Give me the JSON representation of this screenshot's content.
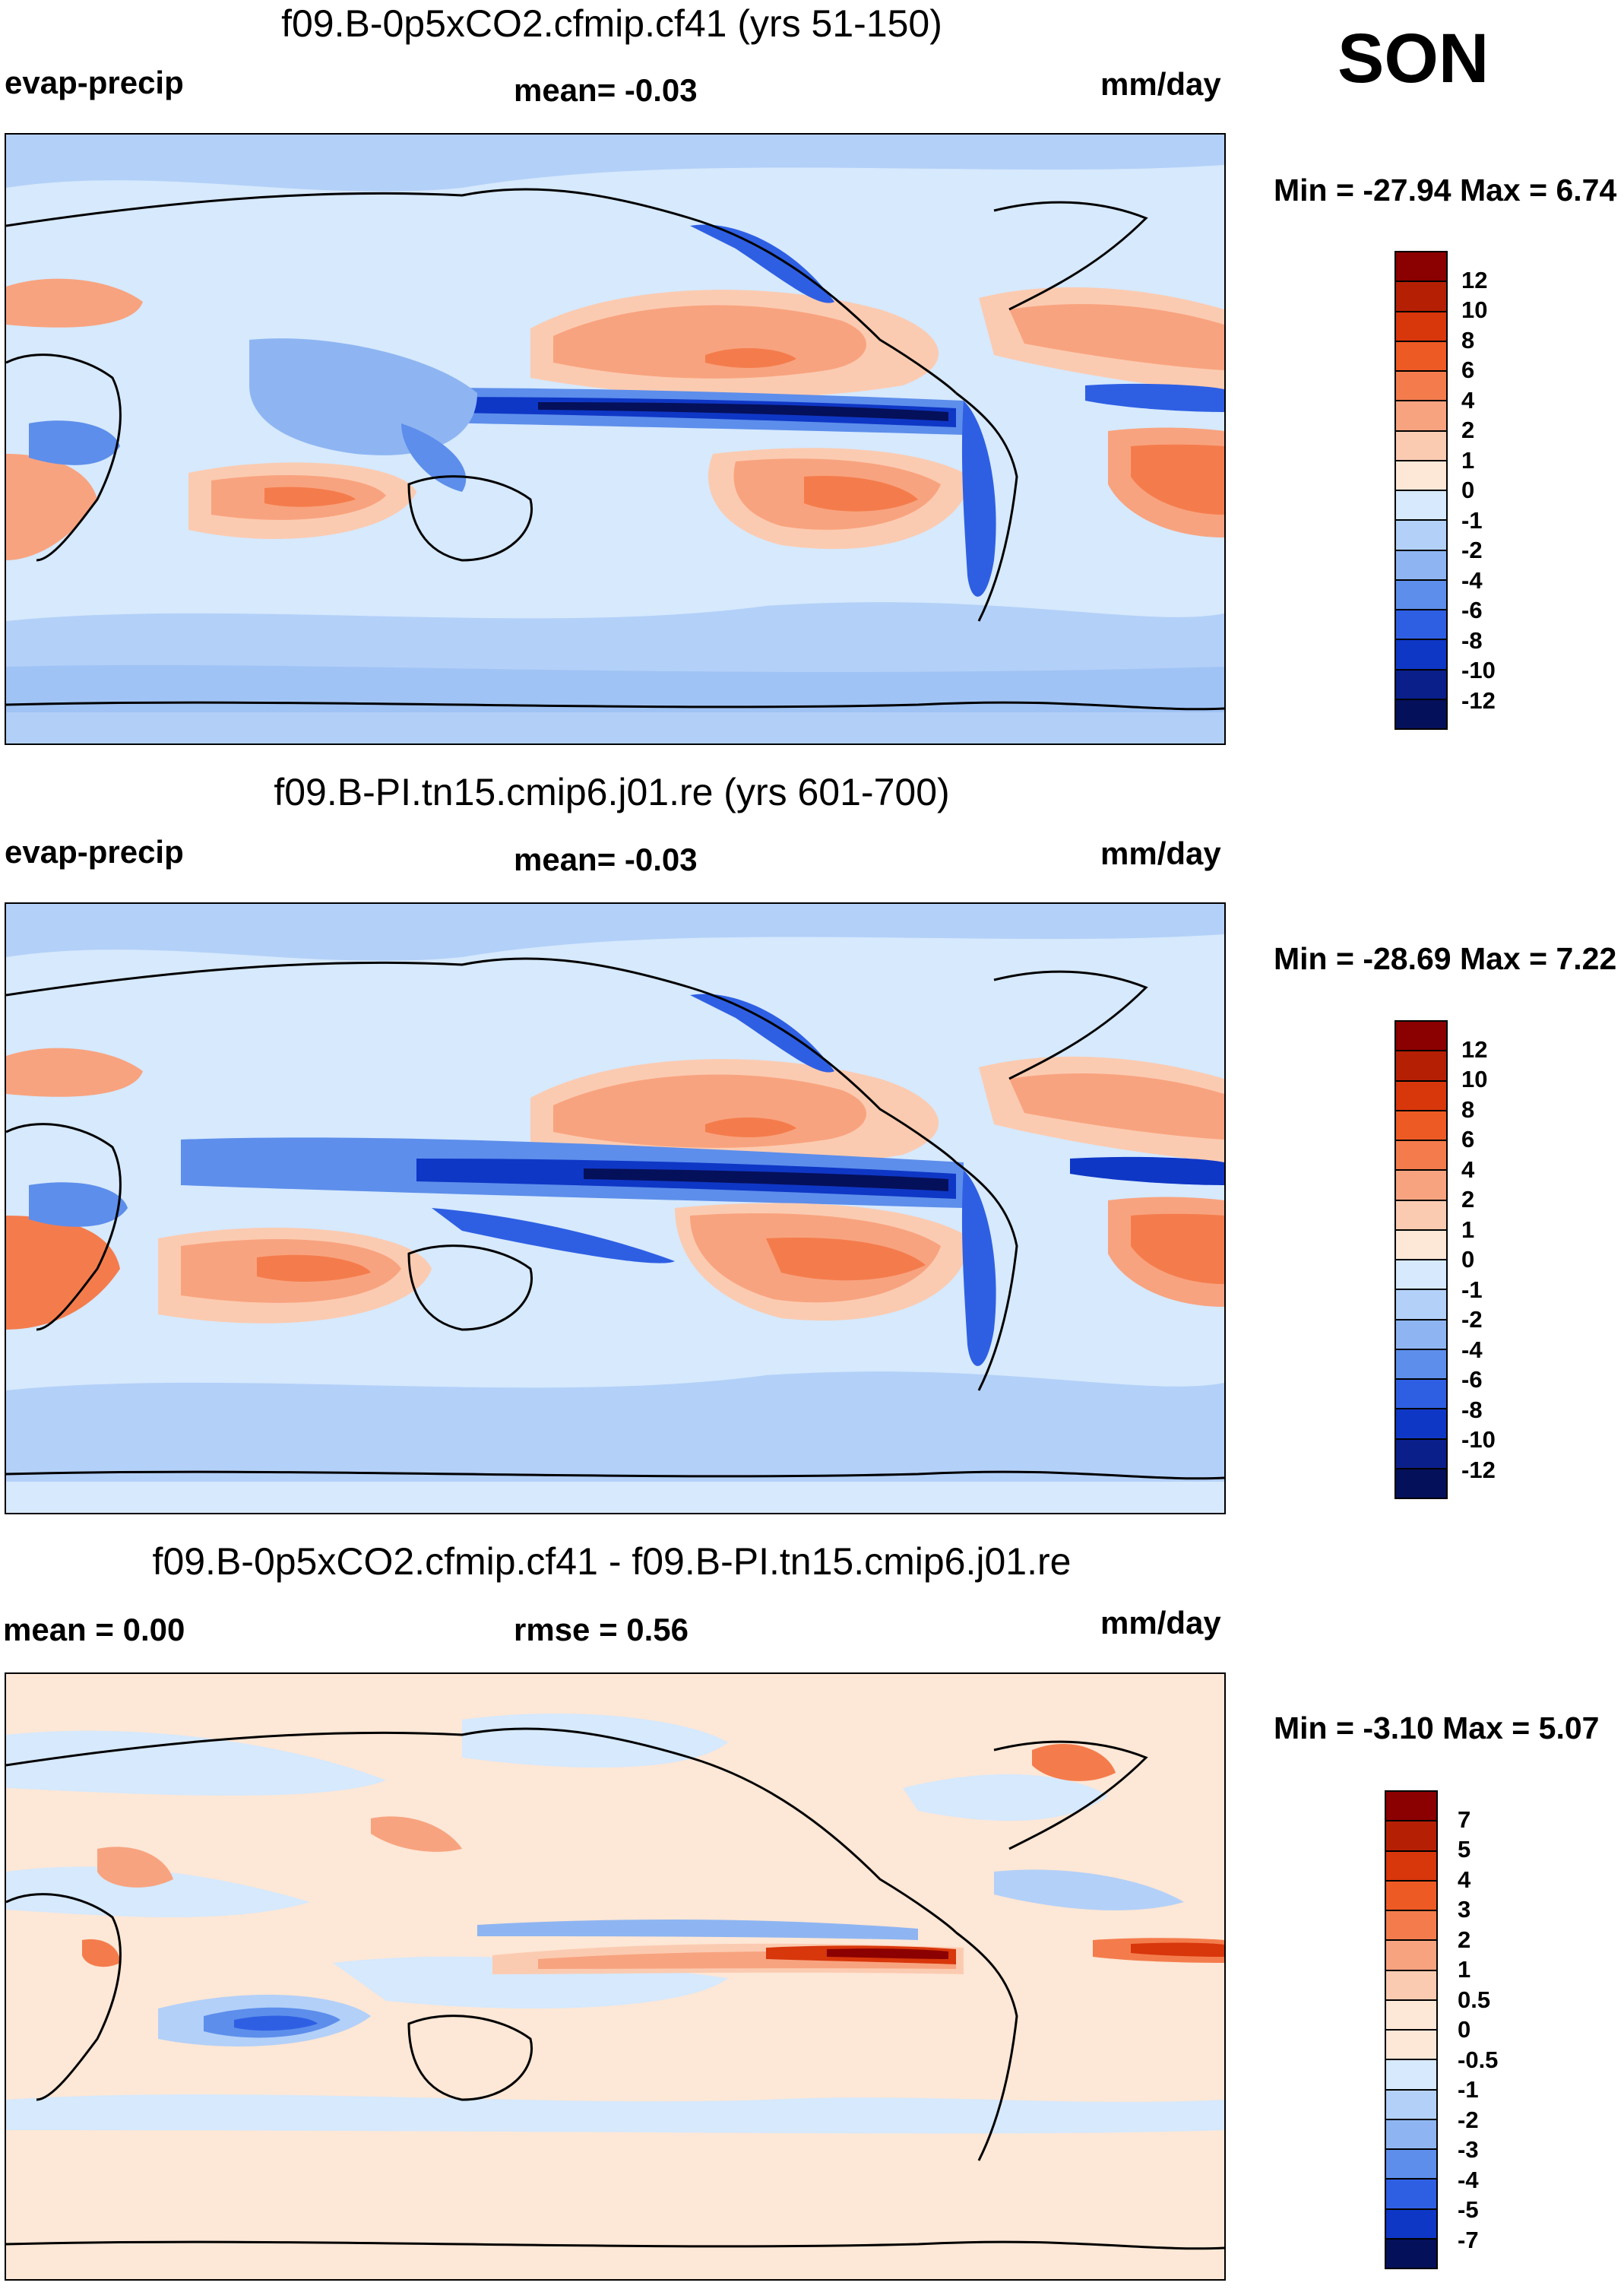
{
  "season": "SON",
  "units": "mm/day",
  "panels": [
    {
      "title": "f09.B-0p5xCO2.cfmip.cf41 (yrs 51-150)",
      "left_label": "evap-precip",
      "center_label": "mean=  -0.03",
      "right_label": "mm/day",
      "minmax": "Min = -27.94 Max =   6.74",
      "colorbar_ticks": [
        "12",
        "10",
        "8",
        "6",
        "4",
        "2",
        "1",
        "0",
        "-1",
        "-2",
        "-4",
        "-6",
        "-8",
        "-10",
        "-12"
      ]
    },
    {
      "title": "f09.B-PI.tn15.cmip6.j01.re (yrs 601-700)",
      "left_label": "evap-precip",
      "center_label": "mean=  -0.03",
      "right_label": "mm/day",
      "minmax": "Min = -28.69 Max =   7.22",
      "colorbar_ticks": [
        "12",
        "10",
        "8",
        "6",
        "4",
        "2",
        "1",
        "0",
        "-1",
        "-2",
        "-4",
        "-6",
        "-8",
        "-10",
        "-12"
      ]
    },
    {
      "title": "f09.B-0p5xCO2.cfmip.cf41 - f09.B-PI.tn15.cmip6.j01.re",
      "left_label": "mean =   0.00",
      "center_label": "rmse =   0.56",
      "right_label": "mm/day",
      "minmax": "Min =  -3.10 Max =   5.07",
      "colorbar_ticks": [
        "7",
        "5",
        "4",
        "3",
        "2",
        "1",
        "0.5",
        "0",
        "-0.5",
        "-1",
        "-2",
        "-3",
        "-4",
        "-5",
        "-7"
      ]
    }
  ],
  "colors": {
    "abs_scale": [
      "#8b0000",
      "#b52005",
      "#d8360b",
      "#ee5a24",
      "#f47c4c",
      "#f8a37f",
      "#fbcbb1",
      "#fde7d6",
      "#d6e9fd",
      "#b3d0f8",
      "#8eb5f2",
      "#5d8eeb",
      "#2e5fe3",
      "#0f37c6",
      "#0a1f8a",
      "#05105a"
    ],
    "diff_scale": [
      "#8b0000",
      "#b52005",
      "#d8360b",
      "#ee5a24",
      "#f47c4c",
      "#f8a37f",
      "#fbcbb1",
      "#fde7d6",
      "#fde7d6",
      "#d6e9fd",
      "#b3d0f8",
      "#8eb5f2",
      "#5d8eeb",
      "#2e5fe3",
      "#0f37c6",
      "#05105a"
    ]
  }
}
